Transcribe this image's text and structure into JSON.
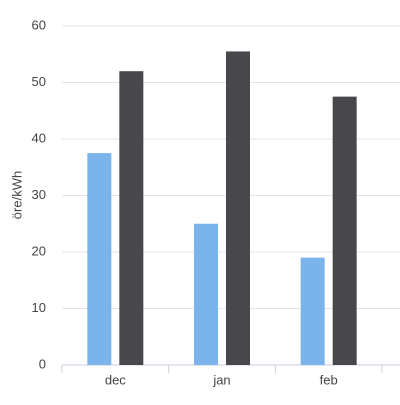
{
  "chart_data": {
    "type": "bar",
    "y_label": "öre/kWh",
    "categories": [
      "dec",
      "jan",
      "feb"
    ],
    "series": [
      {
        "color": "#7ab4ea",
        "values": [
          37.5,
          25,
          19
        ]
      },
      {
        "color": "#48484c",
        "values": [
          52,
          55.5,
          47.5
        ]
      }
    ],
    "ylim": [
      0,
      60
    ],
    "yticks": [
      0,
      10,
      20,
      30,
      40,
      50,
      60
    ],
    "grid": true
  }
}
